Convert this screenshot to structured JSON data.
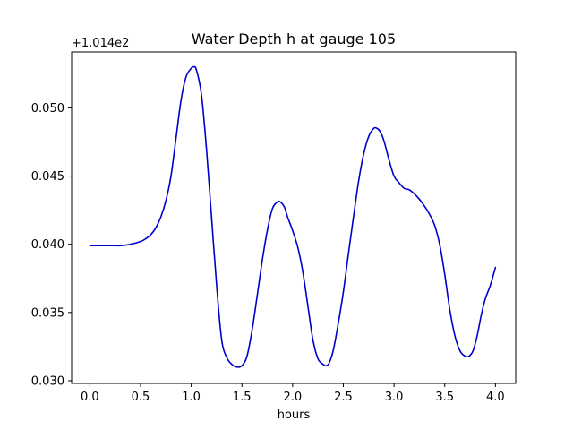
{
  "chart_data": {
    "type": "line",
    "title": "Water Depth h at gauge 105",
    "xlabel": "hours",
    "ylabel": "",
    "y_offset_label": "+1.014e2",
    "xlim": [
      -0.18,
      4.2
    ],
    "ylim": [
      0.0298,
      0.0541
    ],
    "x_ticks": [
      0.0,
      0.5,
      1.0,
      1.5,
      2.0,
      2.5,
      3.0,
      3.5,
      4.0
    ],
    "x_tick_labels": [
      "0.0",
      "0.5",
      "1.0",
      "1.5",
      "2.0",
      "2.5",
      "3.0",
      "3.5",
      "4.0"
    ],
    "y_ticks": [
      0.03,
      0.035,
      0.04,
      0.045,
      0.05
    ],
    "y_tick_labels": [
      "0.030",
      "0.035",
      "0.040",
      "0.045",
      "0.050"
    ],
    "grid": false,
    "series": [
      {
        "color": "#0000cc",
        "x": [
          0.0,
          0.1,
          0.2,
          0.25,
          0.3,
          0.4,
          0.5,
          0.55,
          0.6,
          0.65,
          0.7,
          0.75,
          0.8,
          0.85,
          0.9,
          0.95,
          1.0,
          1.02,
          1.05,
          1.1,
          1.15,
          1.2,
          1.25,
          1.3,
          1.35,
          1.4,
          1.45,
          1.5,
          1.55,
          1.6,
          1.65,
          1.7,
          1.75,
          1.8,
          1.85,
          1.88,
          1.92,
          1.95,
          2.0,
          2.05,
          2.1,
          2.15,
          2.2,
          2.25,
          2.3,
          2.33,
          2.36,
          2.4,
          2.45,
          2.5,
          2.55,
          2.6,
          2.65,
          2.7,
          2.75,
          2.8,
          2.83,
          2.86,
          2.9,
          2.95,
          3.0,
          3.05,
          3.1,
          3.15,
          3.2,
          3.25,
          3.3,
          3.35,
          3.4,
          3.45,
          3.5,
          3.55,
          3.6,
          3.65,
          3.7,
          3.74,
          3.78,
          3.82,
          3.86,
          3.9,
          3.95,
          4.0
        ],
        "y": [
          0.0399,
          0.0399,
          0.0399,
          0.0399,
          0.0399,
          0.04,
          0.0402,
          0.0404,
          0.0407,
          0.0412,
          0.042,
          0.0432,
          0.045,
          0.0478,
          0.0506,
          0.0523,
          0.0529,
          0.053,
          0.0528,
          0.051,
          0.047,
          0.042,
          0.037,
          0.033,
          0.0317,
          0.0312,
          0.031,
          0.0311,
          0.0318,
          0.0337,
          0.0362,
          0.0388,
          0.041,
          0.0426,
          0.0431,
          0.0431,
          0.0427,
          0.042,
          0.041,
          0.0398,
          0.038,
          0.0355,
          0.033,
          0.0316,
          0.0312,
          0.0311,
          0.0313,
          0.0322,
          0.0342,
          0.0365,
          0.0393,
          0.042,
          0.0446,
          0.0466,
          0.0479,
          0.0485,
          0.0485,
          0.0483,
          0.0476,
          0.0462,
          0.045,
          0.0445,
          0.0441,
          0.044,
          0.0437,
          0.0433,
          0.0428,
          0.0422,
          0.0414,
          0.04,
          0.0378,
          0.0352,
          0.0333,
          0.0322,
          0.0318,
          0.0318,
          0.0322,
          0.0333,
          0.0348,
          0.036,
          0.037,
          0.0383
        ]
      }
    ]
  }
}
